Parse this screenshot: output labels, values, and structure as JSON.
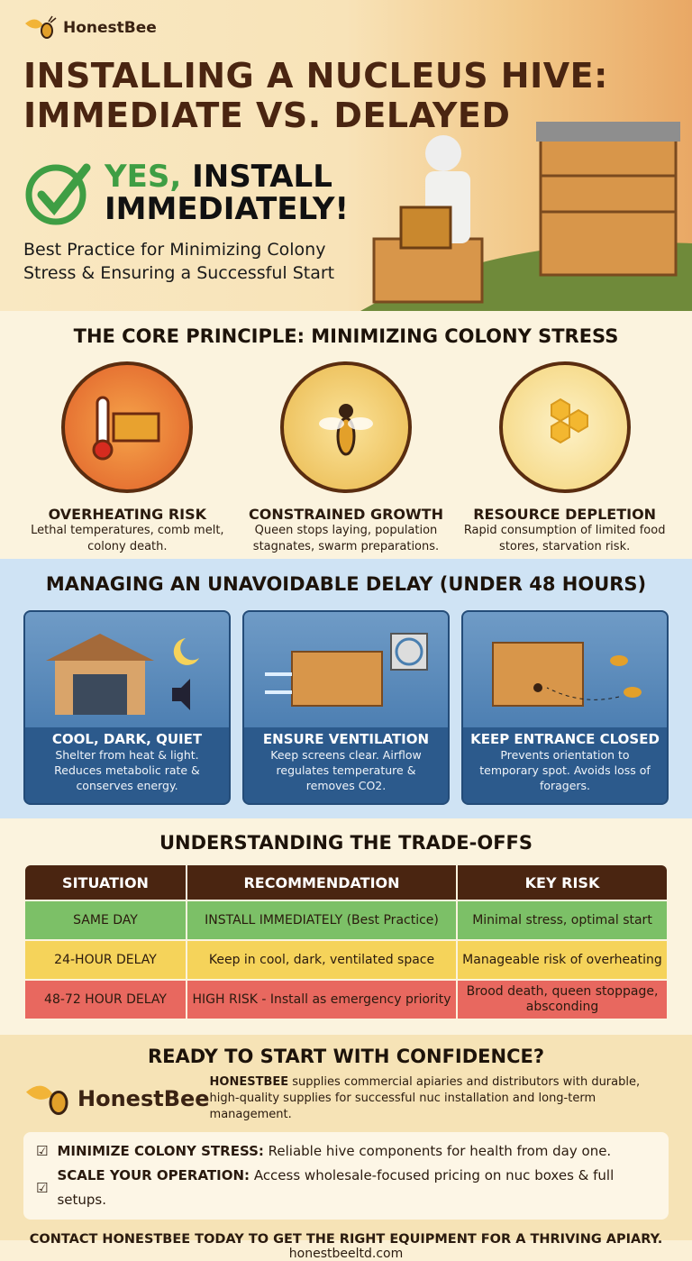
{
  "brand": "HonestBee",
  "hero": {
    "title_line1": "INSTALLING A NUCLEUS HIVE:",
    "title_line2": "IMMEDIATE VS. DELAYED",
    "yes": "YES,",
    "install": "INSTALL",
    "immediately": "IMMEDIATELY!",
    "subtitle_line1": "Best Practice for Minimizing Colony",
    "subtitle_line2": "Stress & Ensuring a Successful Start"
  },
  "core": {
    "title": "THE CORE PRINCIPLE: MINIMIZING COLONY STRESS",
    "items": [
      {
        "icon": "thermometer-melting-comb-icon",
        "heading": "OVERHEATING RISK",
        "desc": "Lethal temperatures, comb melt, colony death."
      },
      {
        "icon": "queen-bee-icon",
        "heading": "CONSTRAINED GROWTH",
        "desc": "Queen stops laying, population stagnates, swarm preparations."
      },
      {
        "icon": "honeycomb-bees-icon",
        "heading": "RESOURCE DEPLETION",
        "desc": "Rapid consumption of limited food stores, starvation risk."
      }
    ]
  },
  "delay": {
    "title": "MANAGING AN UNAVOIDABLE DELAY (UNDER 48 HOURS)",
    "cards": [
      {
        "icon": "garage-moon-icon",
        "heading": "COOL, DARK, QUIET",
        "desc": "Shelter from heat & light. Reduces metabolic rate & conserves energy."
      },
      {
        "icon": "ventilation-fan-icon",
        "heading": "ENSURE VENTILATION",
        "desc": "Keep screens clear. Airflow regulates temperature & removes CO2."
      },
      {
        "icon": "closed-entrance-icon",
        "heading": "KEEP ENTRANCE CLOSED",
        "desc": "Prevents orientation to temporary spot. Avoids loss of foragers."
      }
    ]
  },
  "tradeoffs": {
    "title": "UNDERSTANDING THE TRADE-OFFS",
    "headers": [
      "SITUATION",
      "RECOMMENDATION",
      "KEY RISK"
    ],
    "rows": [
      [
        "SAME DAY",
        "INSTALL IMMEDIATELY (Best Practice)",
        "Minimal stress, optimal start"
      ],
      [
        "24-HOUR DELAY",
        "Keep in cool, dark, ventilated space",
        "Manageable risk of overheating"
      ],
      [
        "48-72 HOUR DELAY",
        "HIGH RISK - Install as emergency priority",
        "Brood death, queen stoppage, absconding"
      ]
    ],
    "colors": [
      "#7cc067",
      "#f5d35a",
      "#e8685f"
    ]
  },
  "cta": {
    "title": "READY TO START WITH CONFIDENCE?",
    "desc_bold": "HONESTBEE",
    "desc": " supplies commercial apiaries and distributors with durable, high-quality supplies for successful nuc installation and long-term management.",
    "bullets": [
      {
        "bold": "MINIMIZE COLONY STRESS:",
        "text": " Reliable hive components for health from day one."
      },
      {
        "bold": "SCALE YOUR OPERATION:",
        "text": " Access wholesale-focused pricing on nuc boxes & full setups."
      }
    ],
    "final": "CONTACT HONESTBEE TODAY TO GET THE RIGHT EQUIPMENT FOR A THRIVING APIARY.",
    "url": "honestbeeltd.com"
  }
}
